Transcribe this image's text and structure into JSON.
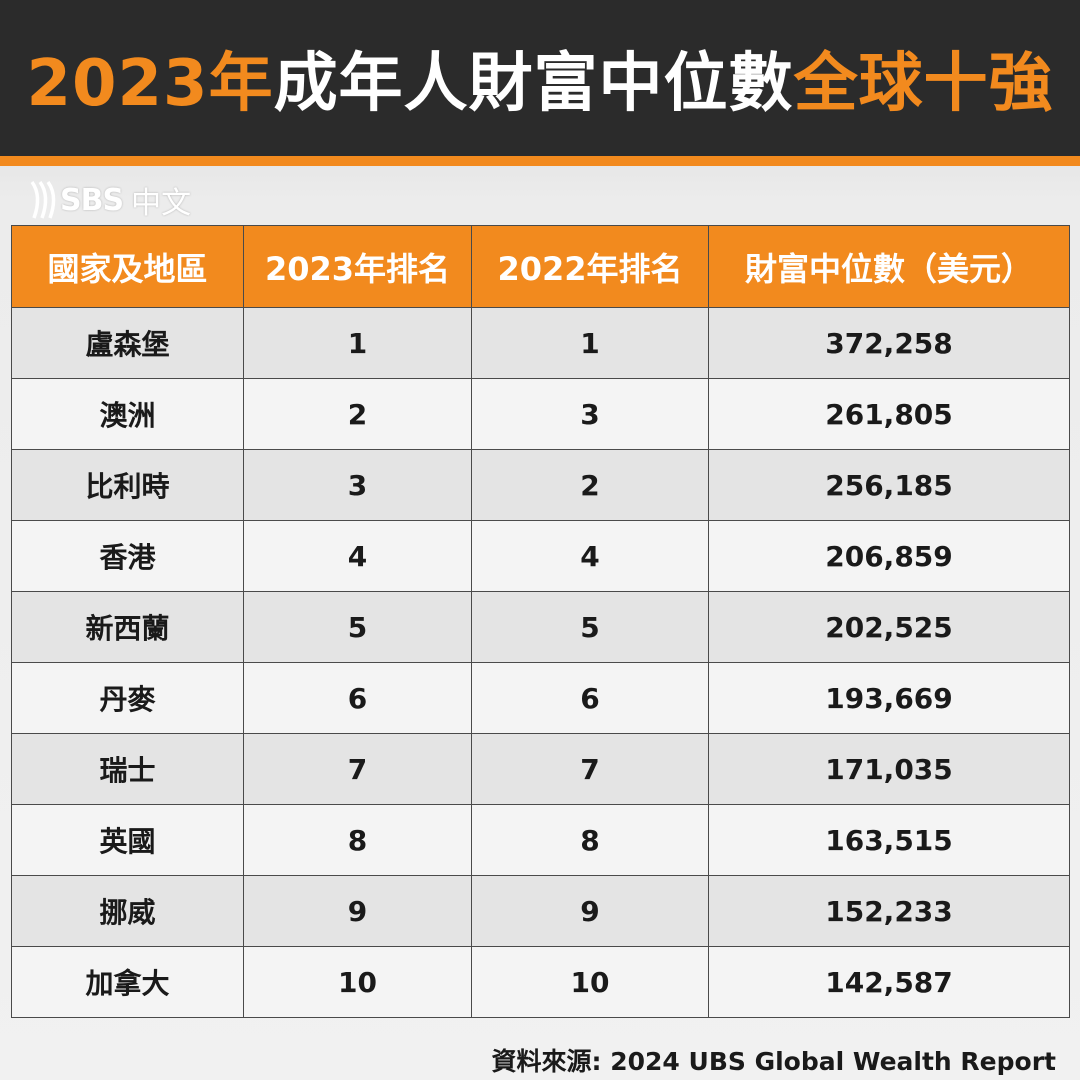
{
  "title": {
    "part1": "2023年",
    "part2": "成年人財富中位數",
    "part3": "全球十強"
  },
  "logo": {
    "brand": "SBS",
    "sub": "中文",
    "icon": "sbs-logo-icon"
  },
  "table": {
    "headers": [
      "國家及地區",
      "2023年排名",
      "2022年排名",
      "財富中位數（美元）"
    ],
    "rows": [
      [
        "盧森堡",
        "1",
        "1",
        "372,258"
      ],
      [
        "澳洲",
        "2",
        "3",
        "261,805"
      ],
      [
        "比利時",
        "3",
        "2",
        "256,185"
      ],
      [
        "香港",
        "4",
        "4",
        "206,859"
      ],
      [
        "新西蘭",
        "5",
        "5",
        "202,525"
      ],
      [
        "丹麥",
        "6",
        "6",
        "193,669"
      ],
      [
        "瑞士",
        "7",
        "7",
        "171,035"
      ],
      [
        "英國",
        "8",
        "8",
        "163,515"
      ],
      [
        "挪威",
        "9",
        "9",
        "152,233"
      ],
      [
        "加拿大",
        "10",
        "10",
        "142,587"
      ]
    ]
  },
  "source": "資料來源: 2024 UBS Global Wealth Report",
  "colors": {
    "accent": "#f28a1e",
    "header_bg": "#2b2b2b"
  }
}
